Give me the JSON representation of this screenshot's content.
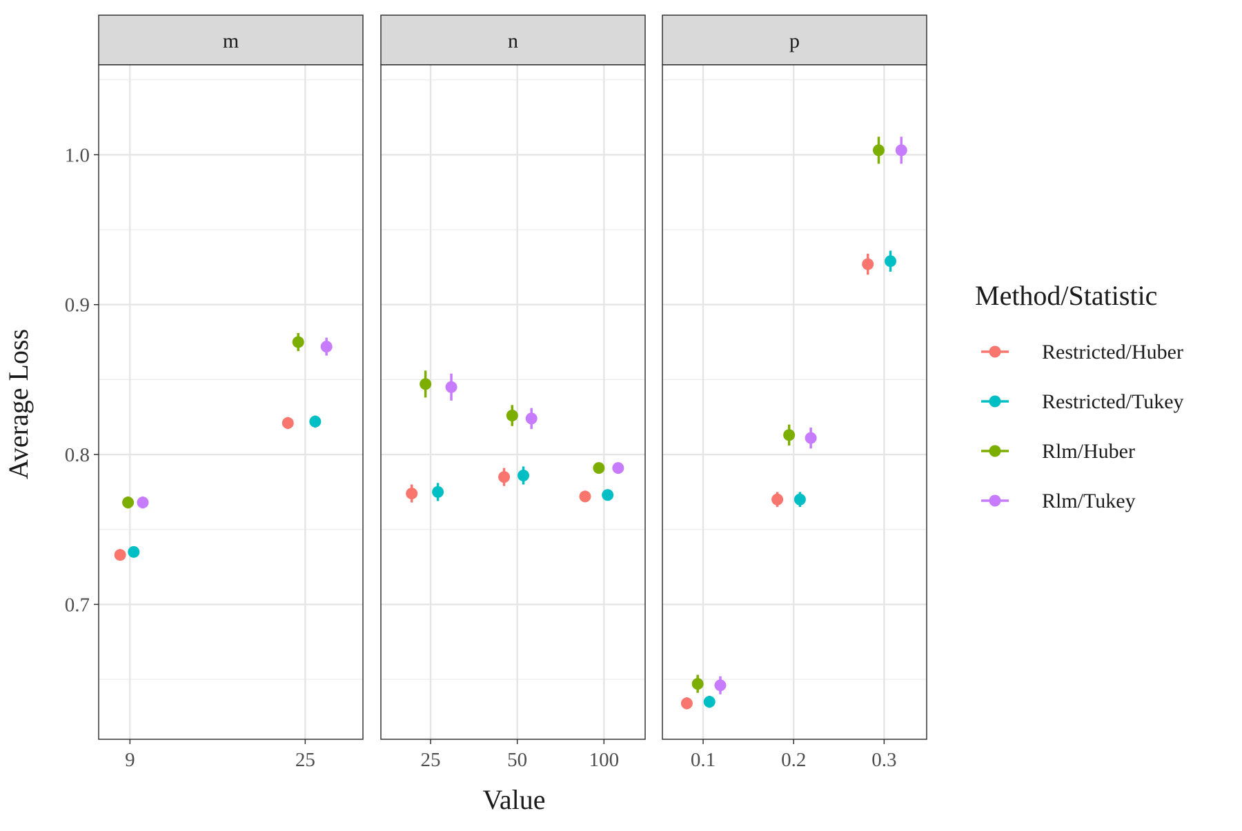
{
  "chart_data": {
    "type": "scatter",
    "title": "",
    "xlabel": "Value",
    "ylabel": "Average Loss",
    "ylim": [
      0.61,
      1.06
    ],
    "y_ticks": [
      0.7,
      0.8,
      0.9,
      1.0
    ],
    "y_tick_labels": [
      "0.7",
      "0.8",
      "0.9",
      "1.0"
    ],
    "grid": true,
    "error_bars": true,
    "legend": {
      "title": "Method/Statistic",
      "position": "right",
      "entries": [
        {
          "name": "Restricted/Huber",
          "color": "#F8766D"
        },
        {
          "name": "Restricted/Tukey",
          "color": "#00BFC4"
        },
        {
          "name": "Rlm/Huber",
          "color": "#7CAE00"
        },
        {
          "name": "Rlm/Tukey",
          "color": "#C77CFF"
        }
      ]
    },
    "panels": [
      {
        "facet": "m",
        "x_scale": "log",
        "x_ticks": [
          9,
          25
        ],
        "x_tick_labels": [
          "9",
          "25"
        ],
        "series": [
          {
            "name": "Restricted/Huber",
            "points": [
              {
                "x": 8.5,
                "y": 0.733,
                "err": 0.002
              },
              {
                "x": 22.6,
                "y": 0.821,
                "err": 0.004
              }
            ]
          },
          {
            "name": "Restricted/Tukey",
            "points": [
              {
                "x": 9.2,
                "y": 0.735,
                "err": 0.002
              },
              {
                "x": 26.5,
                "y": 0.822,
                "err": 0.004
              }
            ]
          },
          {
            "name": "Rlm/Huber",
            "points": [
              {
                "x": 8.9,
                "y": 0.768,
                "err": 0.004
              },
              {
                "x": 24.0,
                "y": 0.875,
                "err": 0.006
              }
            ]
          },
          {
            "name": "Rlm/Tukey",
            "points": [
              {
                "x": 9.7,
                "y": 0.768,
                "err": 0.004
              },
              {
                "x": 28.3,
                "y": 0.872,
                "err": 0.006
              }
            ]
          }
        ]
      },
      {
        "facet": "n",
        "x_scale": "log",
        "x_ticks": [
          25,
          50,
          100
        ],
        "x_tick_labels": [
          "25",
          "50",
          "100"
        ],
        "series": [
          {
            "name": "Restricted/Huber",
            "points": [
              {
                "x": 21.5,
                "y": 0.774,
                "err": 0.006
              },
              {
                "x": 45.0,
                "y": 0.785,
                "err": 0.006
              },
              {
                "x": 86.0,
                "y": 0.772,
                "err": 0.003
              }
            ]
          },
          {
            "name": "Restricted/Tukey",
            "points": [
              {
                "x": 26.5,
                "y": 0.775,
                "err": 0.006
              },
              {
                "x": 52.5,
                "y": 0.786,
                "err": 0.006
              },
              {
                "x": 103.0,
                "y": 0.773,
                "err": 0.003
              }
            ]
          },
          {
            "name": "Rlm/Huber",
            "points": [
              {
                "x": 24.0,
                "y": 0.847,
                "err": 0.009
              },
              {
                "x": 48.0,
                "y": 0.826,
                "err": 0.007
              },
              {
                "x": 96.0,
                "y": 0.791,
                "err": 0.003
              }
            ]
          },
          {
            "name": "Rlm/Tukey",
            "points": [
              {
                "x": 29.5,
                "y": 0.845,
                "err": 0.009
              },
              {
                "x": 56.0,
                "y": 0.824,
                "err": 0.007
              },
              {
                "x": 112.0,
                "y": 0.791,
                "err": 0.003
              }
            ]
          }
        ]
      },
      {
        "facet": "p",
        "x_scale": "linear",
        "x_ticks": [
          0.1,
          0.2,
          0.3
        ],
        "x_tick_labels": [
          "0.1",
          "0.2",
          "0.3"
        ],
        "series": [
          {
            "name": "Restricted/Huber",
            "points": [
              {
                "x": 0.082,
                "y": 0.634,
                "err": 0.004
              },
              {
                "x": 0.182,
                "y": 0.77,
                "err": 0.005
              },
              {
                "x": 0.282,
                "y": 0.927,
                "err": 0.007
              }
            ]
          },
          {
            "name": "Restricted/Tukey",
            "points": [
              {
                "x": 0.107,
                "y": 0.635,
                "err": 0.004
              },
              {
                "x": 0.207,
                "y": 0.77,
                "err": 0.005
              },
              {
                "x": 0.307,
                "y": 0.929,
                "err": 0.007
              }
            ]
          },
          {
            "name": "Rlm/Huber",
            "points": [
              {
                "x": 0.094,
                "y": 0.647,
                "err": 0.006
              },
              {
                "x": 0.195,
                "y": 0.813,
                "err": 0.007
              },
              {
                "x": 0.294,
                "y": 1.003,
                "err": 0.009
              }
            ]
          },
          {
            "name": "Rlm/Tukey",
            "points": [
              {
                "x": 0.119,
                "y": 0.646,
                "err": 0.006
              },
              {
                "x": 0.219,
                "y": 0.811,
                "err": 0.007
              },
              {
                "x": 0.319,
                "y": 1.003,
                "err": 0.009
              }
            ]
          }
        ]
      }
    ]
  }
}
